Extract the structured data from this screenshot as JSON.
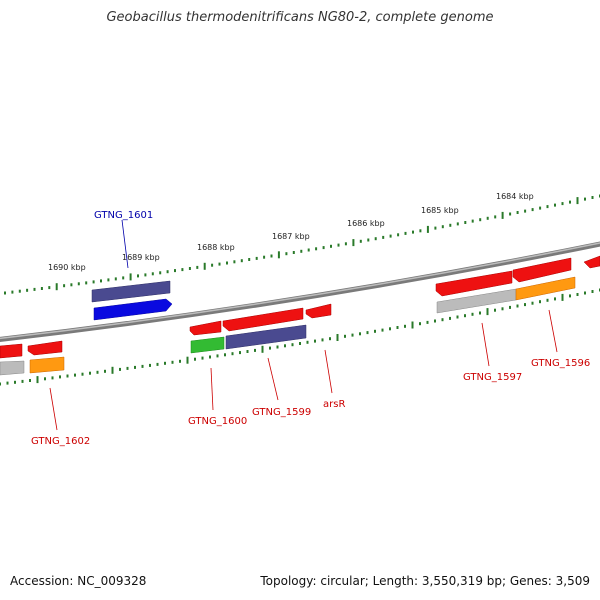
{
  "title": "Geobacillus thermodenitrificans NG80-2, complete genome",
  "footer": {
    "accession": "Accession: NC_009328",
    "summary": "Topology: circular; Length: 3,550,319 bp; Genes: 3,509"
  },
  "scale_labels": [
    "1690 kbp",
    "1689 kbp",
    "1688 kbp",
    "1687 kbp",
    "1686 kbp",
    "1685 kbp",
    "1684 kbp"
  ],
  "gene_labels": [
    {
      "text": "GTNG_1601",
      "color": "#0000aa"
    },
    {
      "text": "GTNG_1600",
      "color": "#cc0000"
    },
    {
      "text": "GTNG_1599",
      "color": "#cc0000"
    },
    {
      "text": "arsR",
      "color": "#cc0000"
    },
    {
      "text": "GTNG_1597",
      "color": "#cc0000"
    },
    {
      "text": "GTNG_1596",
      "color": "#cc0000"
    },
    {
      "text": "GTNG_1602",
      "color": "#cc0000"
    }
  ],
  "colors": {
    "backbone": "#888888",
    "tick": "#2a7a2a",
    "red_gene": "#ee1111",
    "blue_gene": "#0a0ae0",
    "purple_gene": "#4a4a90",
    "green_gene": "#33bb33",
    "orange_gene": "#ff9911",
    "gray_gene": "#bbbbbb"
  }
}
